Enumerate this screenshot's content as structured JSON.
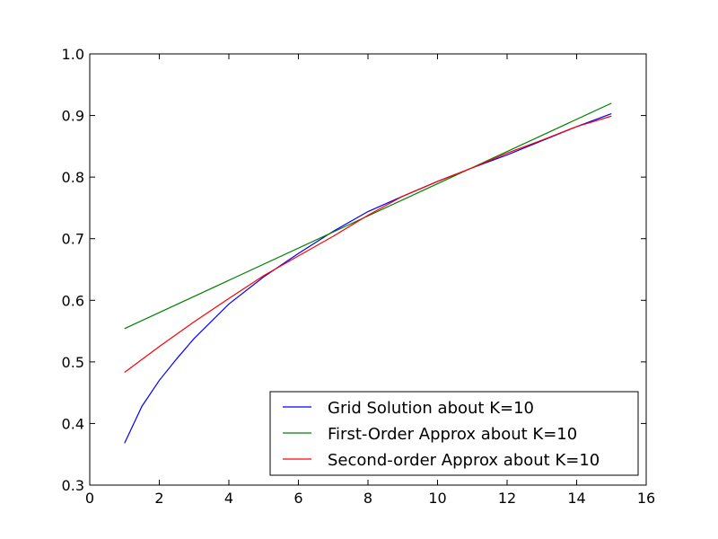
{
  "chart_data": {
    "type": "line",
    "title": "",
    "xlabel": "",
    "ylabel": "",
    "xlim": [
      0,
      16
    ],
    "ylim": [
      0.3,
      1.0
    ],
    "xticks": [
      0,
      2,
      4,
      6,
      8,
      10,
      12,
      14,
      16
    ],
    "yticks": [
      0.3,
      0.4,
      0.5,
      0.6,
      0.7,
      0.8,
      0.9,
      1.0
    ],
    "xtick_labels": [
      "0",
      "2",
      "4",
      "6",
      "8",
      "10",
      "12",
      "14",
      "16"
    ],
    "ytick_labels": [
      "0.3",
      "0.4",
      "0.5",
      "0.6",
      "0.7",
      "0.8",
      "0.9",
      "1.0"
    ],
    "grid": false,
    "legend_position": "lower-right",
    "series": [
      {
        "name": "Grid Solution about K=10",
        "color": "#0000ff",
        "x": [
          1,
          1.5,
          2,
          2.5,
          3,
          4,
          5,
          6,
          7,
          8,
          9,
          10,
          11,
          12,
          13,
          14,
          15
        ],
        "y": [
          0.368,
          0.428,
          0.47,
          0.505,
          0.538,
          0.594,
          0.638,
          0.676,
          0.712,
          0.744,
          0.769,
          0.793,
          0.815,
          0.836,
          0.859,
          0.882,
          0.903
        ]
      },
      {
        "name": "First-Order Approx about K=10",
        "color": "#008000",
        "x": [
          1,
          15
        ],
        "y": [
          0.554,
          0.92
        ]
      },
      {
        "name": "Second-order Approx about K=10",
        "color": "#ff0000",
        "x": [
          1,
          2,
          3,
          4,
          5,
          6,
          7,
          8,
          9,
          10,
          11,
          12,
          13,
          14,
          15
        ],
        "y": [
          0.483,
          0.525,
          0.565,
          0.603,
          0.64,
          0.672,
          0.704,
          0.738,
          0.769,
          0.793,
          0.815,
          0.839,
          0.86,
          0.882,
          0.899
        ]
      }
    ]
  }
}
